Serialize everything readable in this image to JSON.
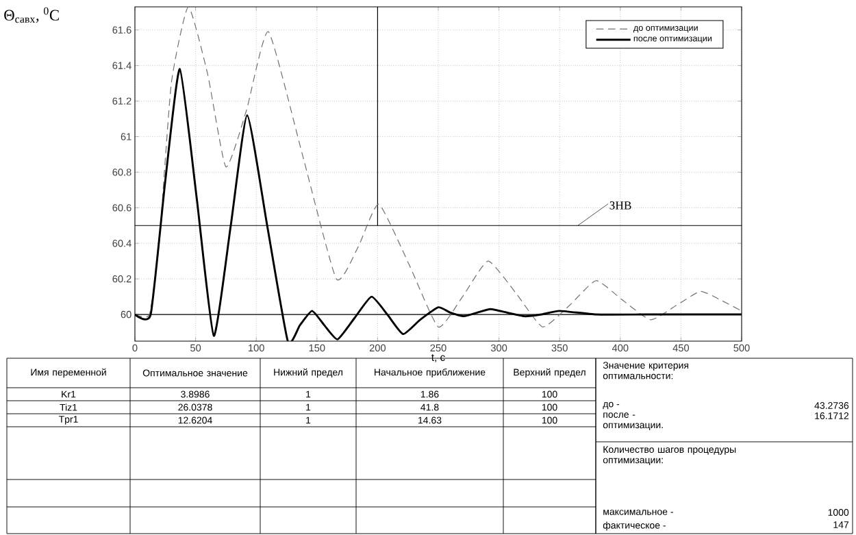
{
  "chart_data": [
    {
      "type": "line",
      "ylabel": "Θ$_{савх}$, $^{0}$С",
      "xlabel": "t, с",
      "xlim": [
        0,
        500
      ],
      "ylim": [
        59.85,
        61.73
      ],
      "xticks": [
        0,
        50,
        100,
        150,
        200,
        250,
        300,
        350,
        400,
        450,
        500
      ],
      "yticks": [
        60,
        60.2,
        60.4,
        60.6,
        60.8,
        61,
        61.2,
        61.4,
        61.6
      ],
      "grid": true,
      "legend": "top right",
      "marker": "none",
      "ref_lines": [
        {
          "axis": "y",
          "value": 60.5,
          "label": "ЗНВ"
        },
        {
          "axis": "y",
          "value": 60
        },
        {
          "axis": "x",
          "value": 200
        }
      ],
      "series": [
        {
          "name": "до оптимизации",
          "color": "#707070",
          "line_style": "dashed",
          "x": [
            0,
            12,
            20,
            30,
            44,
            60,
            75,
            92,
            110,
            138,
            166,
            184,
            201,
            226,
            250,
            270,
            291,
            314,
            336,
            358,
            380,
            402,
            425,
            446,
            466,
            483,
            500
          ],
          "values": [
            60,
            60,
            60.4,
            61.3,
            61.73,
            61.35,
            60.83,
            61.15,
            61.59,
            60.9,
            60.2,
            60.38,
            60.62,
            60.28,
            59.93,
            60.1,
            60.3,
            60.12,
            59.93,
            60.05,
            60.19,
            60.08,
            59.97,
            60.05,
            60.13,
            60.08,
            60.02
          ]
        },
        {
          "name": "после оптимизации",
          "color": "#000000",
          "line_style": "solid",
          "x": [
            0,
            13,
            25,
            37,
            51,
            65,
            79,
            92.5,
            109,
            126,
            136,
            146,
            156,
            167,
            181,
            195,
            208,
            221,
            235,
            250,
            260,
            271,
            282,
            293,
            307,
            321,
            335,
            350,
            380,
            420,
            460,
            500
          ],
          "values": [
            60,
            60,
            60.75,
            61.38,
            60.65,
            59.88,
            60.5,
            61.12,
            60.5,
            59.85,
            59.94,
            60.02,
            59.94,
            59.86,
            59.98,
            60.1,
            60.0,
            59.89,
            59.97,
            60.04,
            60.01,
            59.99,
            60.01,
            60.03,
            60.01,
            59.99,
            60.0,
            60.02,
            60,
            60,
            60,
            60
          ]
        }
      ]
    },
    {
      "type": "other",
      "annotations": [
        "Имя переменной",
        "Оптимальное значение",
        "Нижний предел",
        "Начальное приближение",
        "Верхний предел",
        "Kr1",
        "3.8986",
        "1",
        "1.86",
        "100",
        "Tiz1",
        "26.0378",
        "1",
        "41.8",
        "100",
        "Tpr1",
        "12.6204",
        "1",
        "14.63",
        "100",
        "Значение критерия оптимальности:",
        "до -",
        "43.2736",
        "после - оптимизации.",
        "16.1712",
        "Количество шагов процедуры оптимизации:",
        "максимальное -",
        "1000",
        "фактическое -",
        "147"
      ]
    }
  ]
}
